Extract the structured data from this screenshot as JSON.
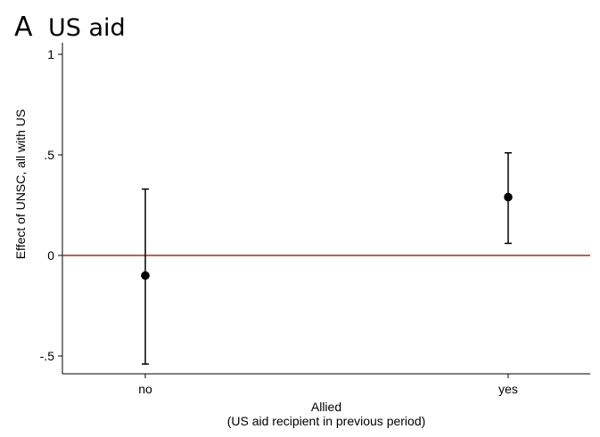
{
  "panel": {
    "letter": "A",
    "title": "US aid"
  },
  "chart_data": {
    "type": "scatter",
    "subtype": "point-estimate-with-confidence-intervals",
    "title": "US aid",
    "xlabel": "Allied",
    "xlabel_sub": "(US aid recipient in previous period)",
    "ylabel": "Effect of UNSC, all with US",
    "categories": [
      "no",
      "yes"
    ],
    "points": [
      {
        "category": "no",
        "estimate": -0.1,
        "ci_low": -0.54,
        "ci_high": 0.33
      },
      {
        "category": "yes",
        "estimate": 0.29,
        "ci_low": 0.06,
        "ci_high": 0.51
      }
    ],
    "yticks": [
      {
        "value": 1,
        "label": "1"
      },
      {
        "value": 0.5,
        "label": ".5"
      },
      {
        "value": 0,
        "label": "0"
      },
      {
        "value": -0.5,
        "label": "-.5"
      }
    ],
    "ylim": [
      -0.59,
      1.05
    ],
    "reference_line": {
      "y": 0,
      "color": "#a52a2a"
    },
    "grid": false,
    "legend": "none",
    "colors": {
      "marker": "#000000",
      "axis": "#000000",
      "reference": "#a52a2a"
    }
  }
}
